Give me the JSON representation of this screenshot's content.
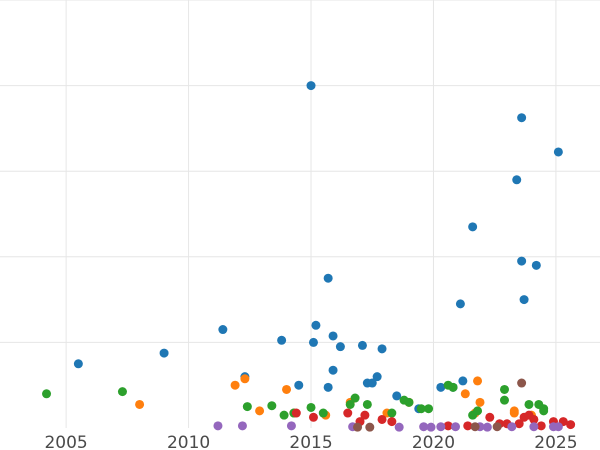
{
  "chart_data": {
    "type": "scatter",
    "title": "",
    "xlabel": "",
    "ylabel": "",
    "xlim": [
      2002.3,
      2026.8
    ],
    "ylim": [
      0,
      10
    ],
    "x_ticks": [
      2005,
      2010,
      2015,
      2020,
      2025
    ],
    "x_tick_labels": [
      "2005",
      "2010",
      "2015",
      "2020",
      "2025"
    ],
    "y_gridlines": [
      2,
      4,
      6,
      8,
      10
    ],
    "y_tick_labels_visible": false,
    "grid": true,
    "legend": "none",
    "series": [
      {
        "color": "#1f77b4",
        "points": [
          [
            2005.5,
            1.5
          ],
          [
            2009.0,
            1.75
          ],
          [
            2011.4,
            2.3
          ],
          [
            2012.3,
            1.2
          ],
          [
            2013.8,
            2.05
          ],
          [
            2014.5,
            1.0
          ],
          [
            2015.0,
            8.0
          ],
          [
            2015.1,
            2.0
          ],
          [
            2015.2,
            2.4
          ],
          [
            2015.7,
            3.5
          ],
          [
            2015.7,
            0.95
          ],
          [
            2015.9,
            1.35
          ],
          [
            2015.9,
            2.15
          ],
          [
            2016.2,
            1.9
          ],
          [
            2017.1,
            1.93
          ],
          [
            2017.3,
            1.05
          ],
          [
            2017.5,
            1.05
          ],
          [
            2017.7,
            1.2
          ],
          [
            2017.9,
            1.85
          ],
          [
            2018.5,
            0.75
          ],
          [
            2019.4,
            0.45
          ],
          [
            2020.3,
            0.95
          ],
          [
            2020.8,
            0.95
          ],
          [
            2021.1,
            2.9
          ],
          [
            2021.2,
            1.1
          ],
          [
            2021.6,
            4.7
          ],
          [
            2023.4,
            5.8
          ],
          [
            2023.6,
            7.25
          ],
          [
            2023.6,
            3.9
          ],
          [
            2023.7,
            3.0
          ],
          [
            2024.2,
            3.8
          ],
          [
            2025.1,
            6.45
          ]
        ]
      },
      {
        "color": "#ff7f0e",
        "points": [
          [
            2008.0,
            0.55
          ],
          [
            2011.9,
            1.0
          ],
          [
            2012.3,
            1.15
          ],
          [
            2012.9,
            0.4
          ],
          [
            2014.0,
            0.9
          ],
          [
            2014.3,
            0.35
          ],
          [
            2015.6,
            0.3
          ],
          [
            2016.6,
            0.6
          ],
          [
            2018.1,
            0.35
          ],
          [
            2019.0,
            0.6
          ],
          [
            2021.3,
            0.8
          ],
          [
            2021.7,
            0.35
          ],
          [
            2021.8,
            1.1
          ],
          [
            2021.9,
            0.6
          ],
          [
            2023.3,
            0.35
          ],
          [
            2023.3,
            0.4
          ],
          [
            2024.0,
            0.3
          ]
        ]
      },
      {
        "color": "#2ca02c",
        "points": [
          [
            2004.2,
            0.8
          ],
          [
            2007.3,
            0.85
          ],
          [
            2012.4,
            0.5
          ],
          [
            2013.4,
            0.52
          ],
          [
            2013.9,
            0.3
          ],
          [
            2014.3,
            0.35
          ],
          [
            2015.0,
            0.48
          ],
          [
            2015.5,
            0.35
          ],
          [
            2016.6,
            0.55
          ],
          [
            2016.8,
            0.7
          ],
          [
            2017.3,
            0.55
          ],
          [
            2018.3,
            0.35
          ],
          [
            2018.8,
            0.65
          ],
          [
            2019.0,
            0.6
          ],
          [
            2019.5,
            0.45
          ],
          [
            2019.8,
            0.45
          ],
          [
            2020.6,
            1.0
          ],
          [
            2020.8,
            0.95
          ],
          [
            2021.6,
            0.3
          ],
          [
            2021.8,
            0.4
          ],
          [
            2022.9,
            0.9
          ],
          [
            2022.9,
            0.65
          ],
          [
            2023.9,
            0.55
          ],
          [
            2024.3,
            0.55
          ],
          [
            2024.5,
            0.45
          ],
          [
            2024.5,
            0.4
          ]
        ]
      },
      {
        "color": "#d62728",
        "points": [
          [
            2014.4,
            0.35
          ],
          [
            2015.1,
            0.25
          ],
          [
            2016.5,
            0.35
          ],
          [
            2017.0,
            0.15
          ],
          [
            2017.2,
            0.3
          ],
          [
            2017.9,
            0.2
          ],
          [
            2018.3,
            0.15
          ],
          [
            2020.6,
            0.05
          ],
          [
            2021.4,
            0.05
          ],
          [
            2022.3,
            0.25
          ],
          [
            2022.7,
            0.1
          ],
          [
            2023.0,
            0.1
          ],
          [
            2023.5,
            0.1
          ],
          [
            2023.7,
            0.25
          ],
          [
            2023.9,
            0.3
          ],
          [
            2024.1,
            0.2
          ],
          [
            2024.4,
            0.05
          ],
          [
            2024.9,
            0.15
          ],
          [
            2025.3,
            0.15
          ],
          [
            2025.6,
            0.08
          ]
        ]
      },
      {
        "color": "#9467bd",
        "points": [
          [
            2011.2,
            0.05
          ],
          [
            2012.2,
            0.05
          ],
          [
            2014.2,
            0.05
          ],
          [
            2016.7,
            0.03
          ],
          [
            2018.6,
            0.02
          ],
          [
            2019.6,
            0.03
          ],
          [
            2019.9,
            0.02
          ],
          [
            2020.3,
            0.03
          ],
          [
            2020.9,
            0.03
          ],
          [
            2021.9,
            0.03
          ],
          [
            2022.2,
            0.02
          ],
          [
            2023.2,
            0.03
          ],
          [
            2024.1,
            0.03
          ],
          [
            2024.9,
            0.03
          ],
          [
            2025.1,
            0.03
          ]
        ]
      },
      {
        "color": "#8c564b",
        "points": [
          [
            2016.9,
            0.02
          ],
          [
            2017.4,
            0.02
          ],
          [
            2021.7,
            0.03
          ],
          [
            2022.6,
            0.03
          ],
          [
            2023.6,
            1.05
          ]
        ]
      }
    ]
  }
}
